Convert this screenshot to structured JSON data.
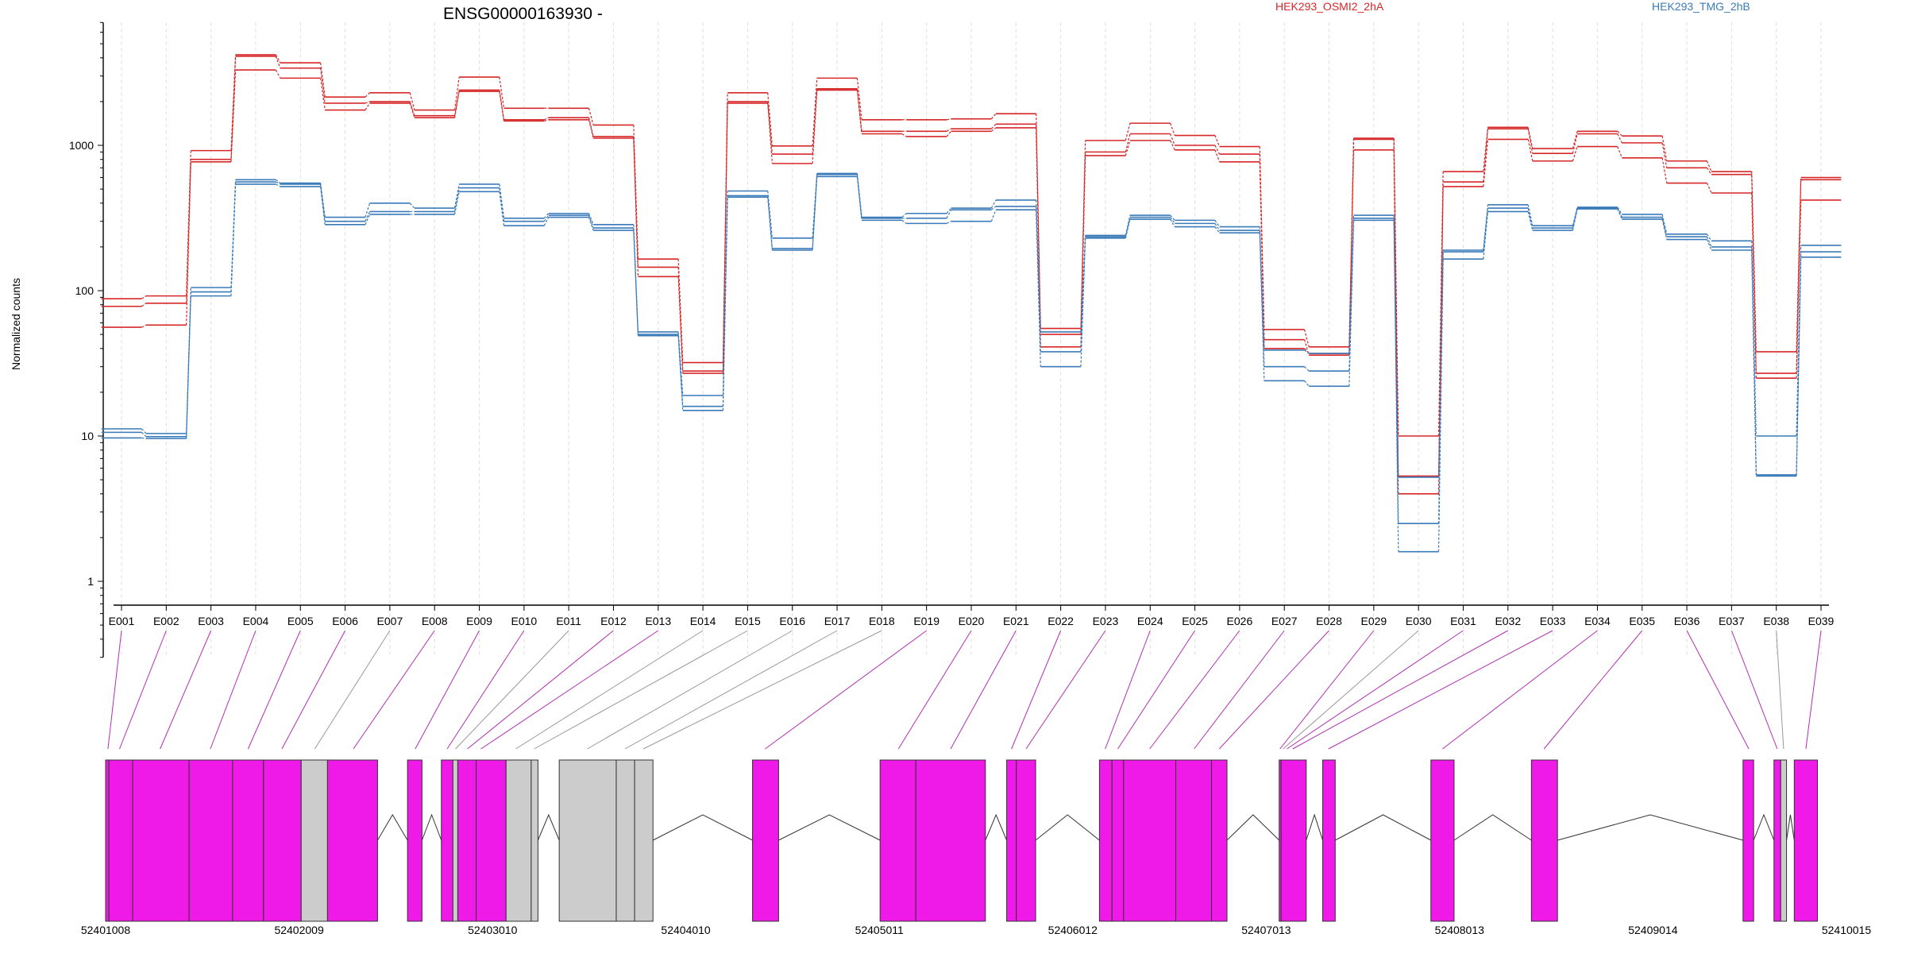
{
  "chart_data": {
    "type": "line",
    "title": "ENSG00000163930 -",
    "ylabel": "Normalized counts",
    "xlabel": "",
    "y_scale": "log",
    "ylim": [
      0.3,
      7000
    ],
    "y_ticks": [
      1,
      10,
      100,
      1000
    ],
    "y_tick_labels": [
      "1",
      "10",
      "100",
      "1000"
    ],
    "grid": "vertical dashed lines at each exon",
    "legend_position": "top-right",
    "colors": {
      "HEK293_OSMI2_2hA": "#d62728",
      "HEK293_TMG_2hB": "#3a7ab8",
      "exon_used": "#f01ae8",
      "exon_other": "#cccccc",
      "line_used": "#b030b0",
      "line_other": "#999999"
    },
    "categories": [
      "E001",
      "E002",
      "E003",
      "E004",
      "E005",
      "E006",
      "E007",
      "E008",
      "E009",
      "E010",
      "E011",
      "E012",
      "E013",
      "E014",
      "E015",
      "E016",
      "E017",
      "E018",
      "E019",
      "E020",
      "E021",
      "E022",
      "E023",
      "E024",
      "E025",
      "E026",
      "E027",
      "E028",
      "E029",
      "E030",
      "E031",
      "E032",
      "E033",
      "E034",
      "E035",
      "E036",
      "E037",
      "E038",
      "E039"
    ],
    "series": [
      {
        "name": "HEK293_OSMI2_2hA",
        "group": "HEK293_OSMI2_2hA",
        "values": [
          88,
          92,
          920,
          4200,
          3700,
          2150,
          2300,
          1750,
          2950,
          1800,
          1800,
          1380,
          165,
          32,
          2300,
          990,
          2900,
          1500,
          1500,
          1520,
          1650,
          55,
          1080,
          1420,
          1170,
          980,
          54,
          41,
          1120,
          10,
          660,
          1330,
          950,
          1250,
          1160,
          780,
          660,
          38,
          600
        ]
      },
      {
        "name": "HEK293_OSMI2_2hA",
        "group": "HEK293_OSMI2_2hA",
        "values": [
          78,
          82,
          800,
          4100,
          3400,
          1950,
          2000,
          1600,
          2400,
          1500,
          1550,
          1150,
          145,
          28,
          2000,
          870,
          2450,
          1250,
          1250,
          1300,
          1400,
          50,
          900,
          1200,
          1000,
          870,
          46,
          36,
          1100,
          5.3,
          560,
          1300,
          880,
          1200,
          1040,
          700,
          630,
          27,
          580
        ]
      },
      {
        "name": "HEK293_OSMI2_2hA",
        "group": "HEK293_OSMI2_2hA",
        "values": [
          56,
          58,
          770,
          3300,
          2900,
          1750,
          1950,
          1550,
          2350,
          1470,
          1500,
          1120,
          125,
          27,
          1950,
          750,
          2400,
          1200,
          1150,
          1250,
          1320,
          41,
          850,
          1080,
          930,
          770,
          40,
          37,
          930,
          4.0,
          520,
          1100,
          780,
          980,
          820,
          550,
          470,
          25,
          420
        ]
      },
      {
        "name": "HEK293_TMG_2hB",
        "group": "HEK293_TMG_2hB",
        "values": [
          11.2,
          10.4,
          105,
          580,
          550,
          320,
          400,
          370,
          540,
          315,
          340,
          285,
          52,
          19,
          485,
          230,
          640,
          320,
          340,
          370,
          420,
          52,
          240,
          330,
          305,
          275,
          39,
          37,
          330,
          5.2,
          190,
          390,
          280,
          375,
          335,
          245,
          220,
          10,
          205
        ]
      },
      {
        "name": "HEK293_TMG_2hB",
        "group": "HEK293_TMG_2hB",
        "values": [
          10.6,
          9.9,
          98,
          560,
          540,
          300,
          350,
          350,
          510,
          300,
          330,
          270,
          50,
          16,
          450,
          195,
          630,
          315,
          315,
          360,
          380,
          38,
          235,
          320,
          290,
          260,
          30,
          28,
          315,
          2.5,
          185,
          370,
          270,
          370,
          320,
          235,
          200,
          5.4,
          185
        ]
      },
      {
        "name": "HEK293_TMG_2hB",
        "group": "HEK293_TMG_2hB",
        "values": [
          9.7,
          9.6,
          92,
          540,
          520,
          285,
          335,
          335,
          480,
          280,
          320,
          260,
          49,
          15,
          440,
          190,
          610,
          305,
          290,
          300,
          360,
          30,
          230,
          310,
          275,
          250,
          24,
          22,
          305,
          1.6,
          165,
          350,
          260,
          365,
          310,
          225,
          190,
          5.3,
          170
        ]
      }
    ],
    "gene_model": {
      "coordinate_ticks": [
        52401008,
        52402009,
        52403010,
        52404010,
        52405011,
        52406012,
        52407013,
        52408013,
        52409014,
        52410015
      ],
      "coord_range": [
        52401008,
        52410015
      ],
      "exons": [
        {
          "start": 52401008,
          "end": 52401025,
          "used": true
        },
        {
          "start": 52401025,
          "end": 52401148,
          "used": true
        },
        {
          "start": 52401148,
          "end": 52401440,
          "used": true
        },
        {
          "start": 52401440,
          "end": 52401665,
          "used": true
        },
        {
          "start": 52401665,
          "end": 52401825,
          "used": true
        },
        {
          "start": 52401825,
          "end": 52402020,
          "used": true
        },
        {
          "start": 52402020,
          "end": 52402156,
          "used": false
        },
        {
          "start": 52402156,
          "end": 52402415,
          "used": true
        },
        {
          "start": 52402570,
          "end": 52402645,
          "used": true
        },
        {
          "start": 52402745,
          "end": 52402805,
          "used": true
        },
        {
          "start": 52402805,
          "end": 52402830,
          "used": false
        },
        {
          "start": 52402830,
          "end": 52402925,
          "used": true
        },
        {
          "start": 52402925,
          "end": 52403080,
          "used": true
        },
        {
          "start": 52403080,
          "end": 52403210,
          "used": false
        },
        {
          "start": 52403210,
          "end": 52403245,
          "used": false
        },
        {
          "start": 52403355,
          "end": 52403650,
          "used": false
        },
        {
          "start": 52403650,
          "end": 52403745,
          "used": false
        },
        {
          "start": 52403745,
          "end": 52403840,
          "used": false
        },
        {
          "start": 52404355,
          "end": 52404490,
          "used": true
        },
        {
          "start": 52405015,
          "end": 52405200,
          "used": true
        },
        {
          "start": 52405200,
          "end": 52405560,
          "used": true
        },
        {
          "start": 52405670,
          "end": 52405720,
          "used": true
        },
        {
          "start": 52405720,
          "end": 52405820,
          "used": true
        },
        {
          "start": 52406150,
          "end": 52406215,
          "used": true
        },
        {
          "start": 52406215,
          "end": 52406275,
          "used": true
        },
        {
          "start": 52406275,
          "end": 52406545,
          "used": true
        },
        {
          "start": 52406545,
          "end": 52406730,
          "used": true
        },
        {
          "start": 52406730,
          "end": 52406810,
          "used": true
        },
        {
          "start": 52407080,
          "end": 52407090,
          "used": true
        },
        {
          "start": 52407090,
          "end": 52407220,
          "used": true
        },
        {
          "start": 52407305,
          "end": 52407370,
          "used": true
        },
        {
          "start": 52407865,
          "end": 52407985,
          "used": true
        },
        {
          "start": 52408385,
          "end": 52408520,
          "used": true
        },
        {
          "start": 52409480,
          "end": 52409535,
          "used": true
        },
        {
          "start": 52409640,
          "end": 52409675,
          "used": true
        },
        {
          "start": 52409675,
          "end": 52409705,
          "used": false
        },
        {
          "start": 52409745,
          "end": 52409865,
          "used": true
        }
      ],
      "introns": [
        [
          52402415,
          52402570
        ],
        [
          52402645,
          52402745
        ],
        [
          52403245,
          52403355
        ],
        [
          52403840,
          52404355
        ],
        [
          52404490,
          52405015
        ],
        [
          52405560,
          52405670
        ],
        [
          52405820,
          52406150
        ],
        [
          52406810,
          52407080
        ],
        [
          52407220,
          52407305
        ],
        [
          52407370,
          52407865
        ],
        [
          52407985,
          52408385
        ],
        [
          52408520,
          52409480
        ],
        [
          52409535,
          52409640
        ],
        [
          52409705,
          52409745
        ]
      ],
      "links": [
        {
          "exon": "E001",
          "genomic": 52401020,
          "used": true
        },
        {
          "exon": "E002",
          "genomic": 52401080,
          "used": true
        },
        {
          "exon": "E003",
          "genomic": 52401290,
          "used": true
        },
        {
          "exon": "E004",
          "genomic": 52401550,
          "used": true
        },
        {
          "exon": "E005",
          "genomic": 52401745,
          "used": true
        },
        {
          "exon": "E006",
          "genomic": 52401920,
          "used": true
        },
        {
          "exon": "E007",
          "genomic": 52402090,
          "used": false
        },
        {
          "exon": "E008",
          "genomic": 52402290,
          "used": true
        },
        {
          "exon": "E009",
          "genomic": 52402610,
          "used": true
        },
        {
          "exon": "E010",
          "genomic": 52402775,
          "used": true
        },
        {
          "exon": "E011",
          "genomic": 52402818,
          "used": false
        },
        {
          "exon": "E012",
          "genomic": 52402880,
          "used": true
        },
        {
          "exon": "E013",
          "genomic": 52402950,
          "used": true
        },
        {
          "exon": "E014",
          "genomic": 52403130,
          "used": false
        },
        {
          "exon": "E015",
          "genomic": 52403225,
          "used": false
        },
        {
          "exon": "E016",
          "genomic": 52403500,
          "used": false
        },
        {
          "exon": "E017",
          "genomic": 52403695,
          "used": false
        },
        {
          "exon": "E018",
          "genomic": 52403790,
          "used": false
        },
        {
          "exon": "E019",
          "genomic": 52404420,
          "used": true
        },
        {
          "exon": "E020",
          "genomic": 52405110,
          "used": true
        },
        {
          "exon": "E021",
          "genomic": 52405380,
          "used": true
        },
        {
          "exon": "E022",
          "genomic": 52405695,
          "used": true
        },
        {
          "exon": "E023",
          "genomic": 52405770,
          "used": true
        },
        {
          "exon": "E024",
          "genomic": 52406180,
          "used": true
        },
        {
          "exon": "E025",
          "genomic": 52406245,
          "used": true
        },
        {
          "exon": "E026",
          "genomic": 52406410,
          "used": true
        },
        {
          "exon": "E027",
          "genomic": 52406640,
          "used": true
        },
        {
          "exon": "E028",
          "genomic": 52406770,
          "used": true
        },
        {
          "exon": "E029",
          "genomic": 52407084,
          "used": true
        },
        {
          "exon": "E030",
          "genomic": 52407100,
          "used": false
        },
        {
          "exon": "E031",
          "genomic": 52407120,
          "used": true
        },
        {
          "exon": "E032",
          "genomic": 52407150,
          "used": true
        },
        {
          "exon": "E033",
          "genomic": 52407335,
          "used": true
        },
        {
          "exon": "E034",
          "genomic": 52407925,
          "used": true
        },
        {
          "exon": "E035",
          "genomic": 52408450,
          "used": true
        },
        {
          "exon": "E036",
          "genomic": 52409510,
          "used": true
        },
        {
          "exon": "E037",
          "genomic": 52409657,
          "used": true
        },
        {
          "exon": "E038",
          "genomic": 52409690,
          "used": false
        },
        {
          "exon": "E039",
          "genomic": 52409805,
          "used": true
        }
      ]
    }
  }
}
